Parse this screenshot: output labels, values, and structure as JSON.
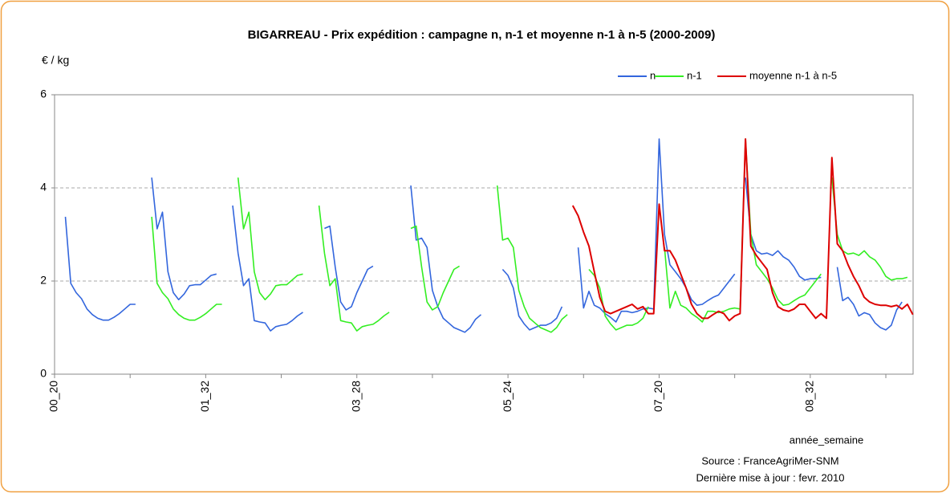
{
  "chart_data": {
    "type": "line",
    "title": "BIGARREAU - Prix expédition : campagne n, n-1 et moyenne n-1 à n-5 (2000-2009)",
    "y_label": "€ / kg",
    "x_label": "année_semaine",
    "source": "Source : FranceAgriMer-SNM",
    "update": "Dernière mise à jour : fevr. 2010",
    "legend": "top-right",
    "grid": true,
    "ylim": [
      0,
      6
    ],
    "yticks": [
      0,
      2,
      4,
      6
    ],
    "categories": [
      "00_20",
      null,
      null,
      null,
      null,
      null,
      null,
      null,
      null,
      null,
      null,
      null,
      null,
      null,
      null,
      null,
      null,
      null,
      null,
      null,
      null,
      null,
      null,
      null,
      null,
      null,
      null,
      null,
      "01_32",
      null,
      null,
      null,
      null,
      null,
      null,
      null,
      null,
      null,
      null,
      null,
      null,
      null,
      null,
      null,
      null,
      null,
      null,
      null,
      null,
      null,
      null,
      null,
      null,
      null,
      null,
      null,
      "03_28",
      null,
      null,
      null,
      null,
      null,
      null,
      null,
      null,
      null,
      null,
      null,
      null,
      null,
      null,
      null,
      null,
      null,
      null,
      null,
      null,
      null,
      null,
      null,
      null,
      null,
      null,
      null,
      "05_24",
      null,
      null,
      null,
      null,
      null,
      null,
      null,
      null,
      null,
      null,
      null,
      null,
      null,
      null,
      null,
      null,
      null,
      null,
      null,
      null,
      null,
      null,
      null,
      null,
      null,
      null,
      null,
      "07_20",
      null,
      null,
      null,
      null,
      null,
      null,
      null,
      null,
      null,
      null,
      null,
      null,
      null,
      null,
      null,
      null,
      null,
      null,
      null,
      null,
      null,
      null,
      null,
      null,
      null,
      null,
      null,
      "08_32",
      null,
      null,
      null,
      null,
      null,
      null,
      null,
      null,
      null,
      null,
      null,
      null,
      null,
      null,
      null,
      null,
      null,
      null,
      null
    ],
    "series": [
      {
        "name": "n",
        "color": "#3366dd",
        "values": [
          null,
          null,
          3.38,
          1.95,
          1.75,
          1.62,
          1.4,
          1.28,
          1.2,
          1.16,
          1.16,
          1.22,
          1.3,
          1.4,
          1.5,
          1.5,
          null,
          null,
          4.22,
          3.12,
          3.48,
          2.2,
          1.75,
          1.6,
          1.72,
          1.9,
          1.92,
          1.92,
          2.02,
          2.12,
          2.15,
          null,
          null,
          3.62,
          2.6,
          1.9,
          2.05,
          1.15,
          1.12,
          1.1,
          0.93,
          1.02,
          1.05,
          1.07,
          1.15,
          1.25,
          1.33,
          null,
          null,
          null,
          3.13,
          3.18,
          2.3,
          1.55,
          1.38,
          1.45,
          1.75,
          2.0,
          2.25,
          2.32,
          null,
          null,
          null,
          null,
          null,
          null,
          4.05,
          2.88,
          2.92,
          2.72,
          1.8,
          1.45,
          1.2,
          1.1,
          1.0,
          0.95,
          0.9,
          1.0,
          1.18,
          1.28,
          null,
          null,
          null,
          2.25,
          2.12,
          1.85,
          1.25,
          1.08,
          0.95,
          1.0,
          1.05,
          1.05,
          1.1,
          1.2,
          1.45,
          null,
          null,
          2.72,
          1.42,
          1.78,
          1.48,
          1.42,
          1.3,
          1.22,
          1.12,
          1.35,
          1.35,
          1.32,
          1.35,
          1.4,
          1.42,
          1.4,
          5.05,
          3.0,
          2.35,
          2.2,
          2.05,
          1.85,
          1.6,
          1.48,
          1.5,
          1.58,
          1.65,
          1.7,
          1.85,
          2.0,
          2.15,
          null,
          4.22,
          3.0,
          2.65,
          2.58,
          2.6,
          2.55,
          2.65,
          2.52,
          2.45,
          2.3,
          2.1,
          2.02,
          2.05,
          2.05,
          2.08,
          null,
          null,
          2.3,
          1.58,
          1.65,
          1.5,
          1.25,
          1.32,
          1.28,
          1.1,
          1.0,
          0.95,
          1.05,
          1.38,
          1.55,
          null,
          null
        ]
      },
      {
        "name": "n-1",
        "color": "#33ee22",
        "values": [
          null,
          null,
          null,
          null,
          null,
          null,
          null,
          null,
          null,
          null,
          null,
          null,
          null,
          null,
          null,
          null,
          null,
          null,
          3.38,
          1.95,
          1.75,
          1.62,
          1.4,
          1.28,
          1.2,
          1.16,
          1.16,
          1.22,
          1.3,
          1.4,
          1.5,
          1.5,
          null,
          null,
          4.22,
          3.12,
          3.48,
          2.2,
          1.75,
          1.6,
          1.72,
          1.9,
          1.92,
          1.92,
          2.02,
          2.12,
          2.15,
          null,
          null,
          3.62,
          2.6,
          1.9,
          2.05,
          1.15,
          1.12,
          1.1,
          0.93,
          1.02,
          1.05,
          1.07,
          1.15,
          1.25,
          1.33,
          null,
          null,
          null,
          3.13,
          3.18,
          2.3,
          1.55,
          1.38,
          1.45,
          1.75,
          2.0,
          2.25,
          2.32,
          null,
          null,
          null,
          null,
          null,
          null,
          4.05,
          2.88,
          2.92,
          2.72,
          1.8,
          1.45,
          1.2,
          1.1,
          1.0,
          0.95,
          0.9,
          1.0,
          1.18,
          1.28,
          null,
          null,
          null,
          2.25,
          2.12,
          1.85,
          1.25,
          1.08,
          0.95,
          1.0,
          1.05,
          1.05,
          1.1,
          1.2,
          1.45,
          null,
          null,
          2.72,
          1.42,
          1.78,
          1.48,
          1.42,
          1.3,
          1.22,
          1.12,
          1.35,
          1.35,
          1.32,
          1.35,
          1.4,
          1.42,
          1.4,
          5.05,
          3.0,
          2.35,
          2.2,
          2.05,
          1.85,
          1.6,
          1.48,
          1.5,
          1.58,
          1.65,
          1.7,
          1.85,
          2.0,
          2.15,
          null,
          4.22,
          3.0,
          2.65,
          2.58,
          2.6,
          2.55,
          2.65,
          2.52,
          2.45,
          2.3,
          2.1,
          2.02,
          2.05,
          2.05,
          2.08,
          null
        ]
      },
      {
        "name": "moyenne n-1 à n-5",
        "color": "#dd0000",
        "values": [
          null,
          null,
          null,
          null,
          null,
          null,
          null,
          null,
          null,
          null,
          null,
          null,
          null,
          null,
          null,
          null,
          null,
          null,
          null,
          null,
          null,
          null,
          null,
          null,
          null,
          null,
          null,
          null,
          null,
          null,
          null,
          null,
          null,
          null,
          null,
          null,
          null,
          null,
          null,
          null,
          null,
          null,
          null,
          null,
          null,
          null,
          null,
          null,
          null,
          null,
          null,
          null,
          null,
          null,
          null,
          null,
          null,
          null,
          null,
          null,
          null,
          null,
          null,
          null,
          null,
          null,
          null,
          null,
          null,
          null,
          null,
          null,
          null,
          null,
          null,
          null,
          null,
          null,
          null,
          null,
          null,
          null,
          null,
          null,
          null,
          null,
          null,
          null,
          null,
          null,
          null,
          null,
          null,
          null,
          null,
          null,
          3.62,
          3.4,
          3.05,
          2.75,
          2.2,
          1.65,
          1.35,
          1.3,
          1.35,
          1.4,
          1.45,
          1.5,
          1.4,
          1.45,
          1.3,
          1.3,
          3.65,
          2.65,
          2.65,
          2.45,
          2.15,
          1.85,
          1.5,
          1.3,
          1.2,
          1.2,
          1.28,
          1.35,
          1.3,
          1.15,
          1.25,
          1.3,
          5.05,
          2.75,
          2.55,
          2.4,
          2.25,
          1.75,
          1.45,
          1.38,
          1.35,
          1.4,
          1.5,
          1.5,
          1.35,
          1.2,
          1.3,
          1.2,
          4.65,
          2.8,
          2.65,
          2.35,
          2.1,
          1.9,
          1.65,
          1.55,
          1.5,
          1.48,
          1.48,
          1.45,
          1.48,
          1.4,
          1.5,
          1.28
        ]
      }
    ]
  }
}
